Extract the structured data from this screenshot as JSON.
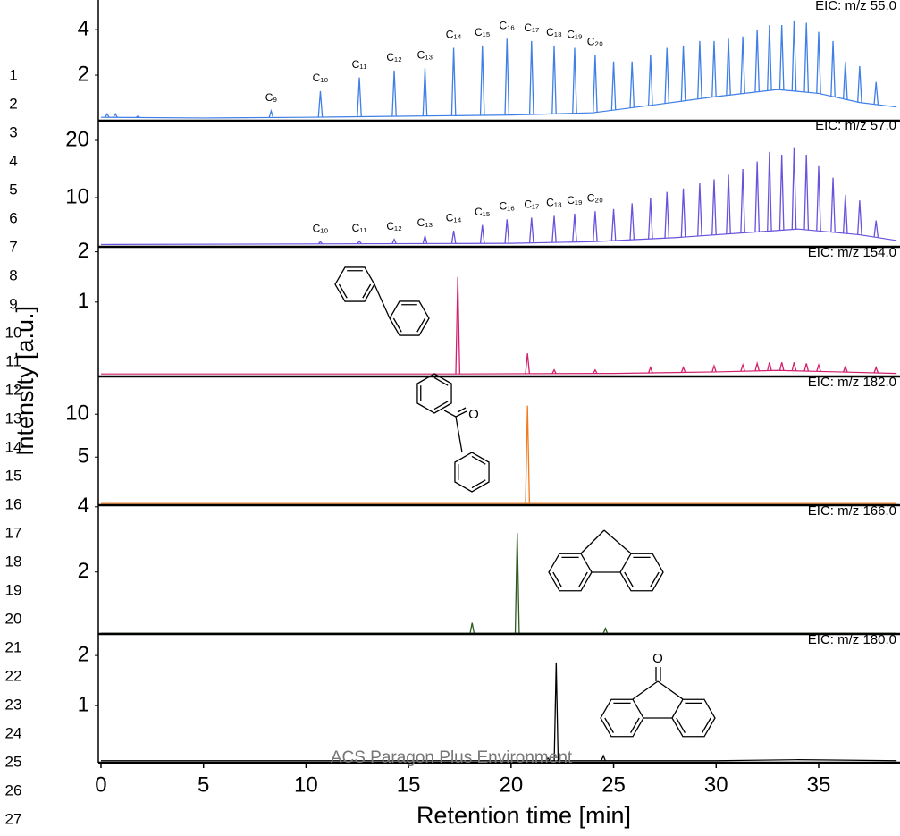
{
  "figure": {
    "ylabel": "Intensity [a.u.]",
    "xlabel": "Retention time [min]",
    "xlim": [
      -0.13,
      38.88
    ],
    "xticks": [
      0,
      5,
      10,
      15,
      20,
      25,
      30,
      35
    ]
  },
  "line_numbers": [
    1,
    2,
    3,
    4,
    5,
    6,
    7,
    8,
    9,
    10,
    11,
    12,
    13,
    14,
    15,
    16,
    17,
    18,
    19,
    20,
    21,
    22,
    23,
    24,
    25,
    26,
    27
  ],
  "watermark": "ACS Paragon Plus Environment",
  "chart_data": [
    {
      "type": "line",
      "label": "EIC: m/z 55.0",
      "color": "#3f7fe6",
      "ylim": [
        0,
        5.3
      ],
      "yticks": [
        2,
        4
      ],
      "peaks_x": [
        0.3,
        0.7,
        1.8,
        8.3,
        10.7,
        12.6,
        14.3,
        15.8,
        17.2,
        18.6,
        19.8,
        21.0,
        22.1,
        23.1,
        24.1,
        25.0,
        25.9,
        26.8,
        27.6,
        28.4,
        29.2,
        29.9,
        30.6,
        31.3,
        32.0,
        32.6,
        33.2,
        33.8,
        34.4,
        35.0,
        35.7,
        36.3,
        37.0,
        37.8
      ],
      "peaks": [
        0.3,
        0.3,
        0.2,
        0.43,
        1.3,
        1.9,
        2.2,
        2.3,
        3.2,
        3.3,
        3.6,
        3.5,
        3.3,
        3.2,
        2.9,
        2.6,
        2.6,
        2.9,
        3.2,
        3.3,
        3.5,
        3.5,
        3.6,
        3.7,
        4.0,
        4.2,
        4.2,
        4.4,
        4.3,
        3.9,
        3.5,
        2.6,
        2.4,
        1.7
      ],
      "peak_labels": [
        null,
        null,
        null,
        "C₉",
        "C₁₀",
        "C₁₁",
        "C₁₂",
        "C₁₃",
        "C₁₄",
        "C₁₅",
        "C₁₆",
        "C₁₇",
        "C₁₈",
        "C₁₉",
        "C₂₀",
        null,
        null,
        null,
        null,
        null,
        null,
        null,
        null,
        null,
        null,
        null,
        null,
        null,
        null,
        null,
        null,
        null,
        null,
        null
      ],
      "baseline_x": [
        0,
        5,
        10,
        15,
        20,
        24,
        27,
        30,
        33,
        35,
        37,
        38.8
      ],
      "baseline": [
        0.15,
        0.12,
        0.15,
        0.2,
        0.25,
        0.35,
        0.7,
        1.06,
        1.37,
        1.2,
        0.8,
        0.6
      ]
    },
    {
      "type": "line",
      "label": "EIC: m/z 57.0",
      "color": "#6a52dc",
      "ylim": [
        1.4,
        23.6
      ],
      "yticks": [
        10,
        20
      ],
      "peaks_x": [
        10.7,
        12.6,
        14.3,
        15.8,
        17.2,
        18.6,
        19.8,
        21.0,
        22.1,
        23.1,
        24.1,
        25.0,
        25.9,
        26.8,
        27.6,
        28.4,
        29.2,
        29.9,
        30.6,
        31.3,
        32.0,
        32.6,
        33.2,
        33.8,
        34.4,
        35.0,
        35.7,
        36.3,
        37.0,
        37.8
      ],
      "peaks": [
        2.3,
        2.4,
        2.7,
        3.3,
        4.2,
        5.2,
        6.2,
        6.5,
        6.8,
        7.2,
        7.6,
        8,
        9,
        10,
        11,
        11.6,
        12.5,
        13.2,
        14,
        15,
        16.3,
        18,
        17.5,
        18.8,
        17.5,
        15.5,
        13.5,
        10.5,
        9.5,
        6
      ],
      "peak_labels": [
        "C₁₀",
        "C₁₁",
        "C₁₂",
        "C₁₃",
        "C₁₄",
        "C₁₅",
        "C₁₆",
        "C₁₇",
        "C₁₈",
        "C₁₉",
        "C₂₀",
        null,
        null,
        null,
        null,
        null,
        null,
        null,
        null,
        null,
        null,
        null,
        null,
        null,
        null,
        null,
        null,
        null,
        null,
        null
      ],
      "baseline_x": [
        0,
        10,
        20,
        24,
        28,
        32,
        34,
        37,
        38.8
      ],
      "baseline": [
        1.8,
        1.9,
        2.0,
        2.3,
        3.0,
        4.0,
        4.5,
        3.5,
        2.5
      ]
    },
    {
      "type": "line",
      "label": "EIC: m/z 154.0",
      "color": "#d21f6c",
      "ylim": [
        -0.48,
        2.1
      ],
      "yticks": [
        1,
        2
      ],
      "peaks_x": [
        17.4,
        20.8,
        22.1,
        24.1,
        26.8,
        28.4,
        29.9,
        31.3,
        32.0,
        32.6,
        33.2,
        33.8,
        34.4,
        35.0,
        36.3,
        37.8
      ],
      "peaks": [
        1.5,
        -0.02,
        -0.35,
        -0.35,
        -0.3,
        -0.3,
        -0.27,
        -0.25,
        -0.22,
        -0.2,
        -0.2,
        -0.2,
        -0.22,
        -0.25,
        -0.28,
        -0.3
      ],
      "baseline_x": [
        0,
        17,
        25,
        30,
        33,
        36,
        38.8
      ],
      "baseline": [
        -0.43,
        -0.43,
        -0.42,
        -0.39,
        -0.36,
        -0.39,
        -0.42
      ],
      "structure": "biphenyl"
    },
    {
      "type": "line",
      "label": "EIC: m/z 182.0",
      "color": "#f07a1e",
      "ylim": [
        -0.6,
        14.4
      ],
      "yticks": [
        5,
        10
      ],
      "peaks_x": [
        20.8
      ],
      "peaks": [
        11.0
      ],
      "baseline_x": [
        0,
        38.8
      ],
      "baseline": [
        -0.4,
        -0.4
      ],
      "structure": "benzophenone",
      "structure_label": "O"
    },
    {
      "type": "line",
      "label": "EIC: m/z 166.0",
      "color": "#2e5a1e",
      "ylim": [
        0.1,
        4.05
      ],
      "yticks": [
        2,
        4
      ],
      "peaks_x": [
        18.1,
        20.3,
        24.6
      ],
      "peaks": [
        0.44,
        3.2,
        0.27
      ],
      "baseline_x": [
        0,
        38.8
      ],
      "baseline": [
        0.12,
        0.12
      ],
      "structure": "fluorene"
    },
    {
      "type": "line",
      "label": "EIC: m/z 180.0",
      "color": "#000000",
      "ylim": [
        -0.14,
        2.43
      ],
      "yticks": [
        1,
        2
      ],
      "peaks_x": [
        21.8,
        22.2,
        24.5
      ],
      "peaks": [
        -0.05,
        1.86,
        0.0
      ],
      "baseline_x": [
        0,
        30,
        34,
        38.8
      ],
      "baseline": [
        -0.1,
        -0.1,
        -0.08,
        -0.1
      ],
      "structure": "fluorenone",
      "structure_label": "O"
    }
  ]
}
